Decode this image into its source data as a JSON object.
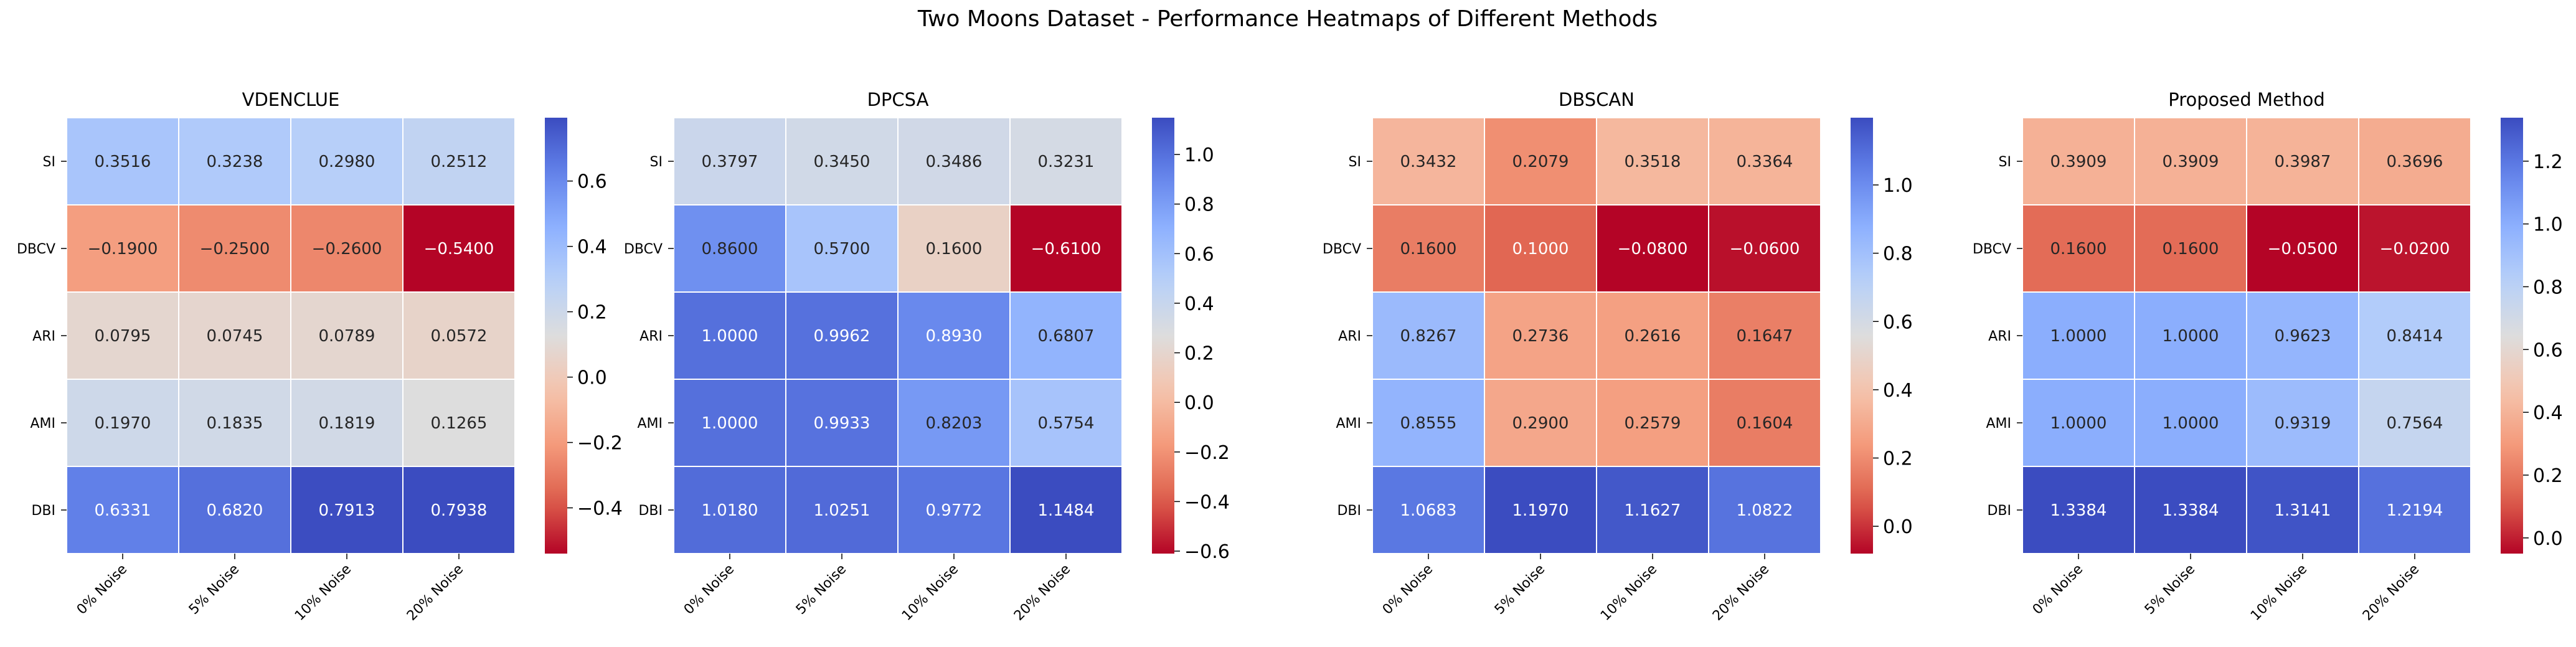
{
  "suptitle": "Two Moons Dataset - Performance Heatmaps of Different Methods",
  "chart_data": [
    {
      "type": "heatmap",
      "title": "VDENCLUE",
      "rows": [
        "SI",
        "DBCV",
        "ARI",
        "AMI",
        "DBI"
      ],
      "columns": [
        "0% Noise",
        "5% Noise",
        "10% Noise",
        "20% Noise"
      ],
      "values": [
        [
          0.3516,
          0.3238,
          0.298,
          0.2512
        ],
        [
          -0.19,
          -0.25,
          -0.26,
          -0.54
        ],
        [
          0.0795,
          0.0745,
          0.0789,
          0.0572
        ],
        [
          0.197,
          0.1835,
          0.1819,
          0.1265
        ],
        [
          0.6331,
          0.682,
          0.7913,
          0.7938
        ]
      ],
      "cell_labels": [
        [
          "0.3516",
          "0.3238",
          "0.2980",
          "0.2512"
        ],
        [
          "−0.1900",
          "−0.2500",
          "−0.2600",
          "−0.5400"
        ],
        [
          "0.0795",
          "0.0745",
          "0.0789",
          "0.0572"
        ],
        [
          "0.1970",
          "0.1835",
          "0.1819",
          "0.1265"
        ],
        [
          "0.6331",
          "0.6820",
          "0.7913",
          "0.7938"
        ]
      ],
      "colormap": "coolwarm_r",
      "vmin": -0.54,
      "vmax": 0.7938,
      "colorbar_ticks": [
        -0.4,
        -0.2,
        0.0,
        0.2,
        0.4,
        0.6
      ],
      "colorbar_tick_labels": [
        "−0.4",
        "−0.2",
        "0.0",
        "0.2",
        "0.4",
        "0.6"
      ]
    },
    {
      "type": "heatmap",
      "title": "DPCSA",
      "rows": [
        "SI",
        "DBCV",
        "ARI",
        "AMI",
        "DBI"
      ],
      "columns": [
        "0% Noise",
        "5% Noise",
        "10% Noise",
        "20% Noise"
      ],
      "values": [
        [
          0.3797,
          0.345,
          0.3486,
          0.3231
        ],
        [
          0.86,
          0.57,
          0.16,
          -0.61
        ],
        [
          1.0,
          0.9962,
          0.893,
          0.6807
        ],
        [
          1.0,
          0.9933,
          0.8203,
          0.5754
        ],
        [
          1.018,
          1.0251,
          0.9772,
          1.1484
        ]
      ],
      "cell_labels": [
        [
          "0.3797",
          "0.3450",
          "0.3486",
          "0.3231"
        ],
        [
          "0.8600",
          "0.5700",
          "0.1600",
          "−0.6100"
        ],
        [
          "1.0000",
          "0.9962",
          "0.8930",
          "0.6807"
        ],
        [
          "1.0000",
          "0.9933",
          "0.8203",
          "0.5754"
        ],
        [
          "1.0180",
          "1.0251",
          "0.9772",
          "1.1484"
        ]
      ],
      "colormap": "coolwarm_r",
      "vmin": -0.61,
      "vmax": 1.1484,
      "colorbar_ticks": [
        -0.6,
        -0.4,
        -0.2,
        0.0,
        0.2,
        0.4,
        0.6,
        0.8,
        1.0
      ],
      "colorbar_tick_labels": [
        "−0.6",
        "−0.4",
        "−0.2",
        "0.0",
        "0.2",
        "0.4",
        "0.6",
        "0.8",
        "1.0"
      ]
    },
    {
      "type": "heatmap",
      "title": "DBSCAN",
      "rows": [
        "SI",
        "DBCV",
        "ARI",
        "AMI",
        "DBI"
      ],
      "columns": [
        "0% Noise",
        "5% Noise",
        "10% Noise",
        "20% Noise"
      ],
      "values": [
        [
          0.3432,
          0.2079,
          0.3518,
          0.3364
        ],
        [
          0.16,
          0.1,
          -0.08,
          -0.06
        ],
        [
          0.8267,
          0.2736,
          0.2616,
          0.1647
        ],
        [
          0.8555,
          0.29,
          0.2579,
          0.1604
        ],
        [
          1.0683,
          1.197,
          1.1627,
          1.0822
        ]
      ],
      "cell_labels": [
        [
          "0.3432",
          "0.2079",
          "0.3518",
          "0.3364"
        ],
        [
          "0.1600",
          "0.1000",
          "−0.0800",
          "−0.0600"
        ],
        [
          "0.8267",
          "0.2736",
          "0.2616",
          "0.1647"
        ],
        [
          "0.8555",
          "0.2900",
          "0.2579",
          "0.1604"
        ],
        [
          "1.0683",
          "1.1970",
          "1.1627",
          "1.0822"
        ]
      ],
      "colormap": "coolwarm_r",
      "vmin": -0.08,
      "vmax": 1.197,
      "colorbar_ticks": [
        0.0,
        0.2,
        0.4,
        0.6,
        0.8,
        1.0
      ],
      "colorbar_tick_labels": [
        "0.0",
        "0.2",
        "0.4",
        "0.6",
        "0.8",
        "1.0"
      ]
    },
    {
      "type": "heatmap",
      "title": "Proposed Method",
      "rows": [
        "SI",
        "DBCV",
        "ARI",
        "AMI",
        "DBI"
      ],
      "columns": [
        "0% Noise",
        "5% Noise",
        "10% Noise",
        "20% Noise"
      ],
      "values": [
        [
          0.3909,
          0.3909,
          0.3987,
          0.3696
        ],
        [
          0.16,
          0.16,
          -0.05,
          -0.02
        ],
        [
          1.0,
          1.0,
          0.9623,
          0.8414
        ],
        [
          1.0,
          1.0,
          0.9319,
          0.7564
        ],
        [
          1.3384,
          1.3384,
          1.3141,
          1.2194
        ]
      ],
      "cell_labels": [
        [
          "0.3909",
          "0.3909",
          "0.3987",
          "0.3696"
        ],
        [
          "0.1600",
          "0.1600",
          "−0.0500",
          "−0.0200"
        ],
        [
          "1.0000",
          "1.0000",
          "0.9623",
          "0.8414"
        ],
        [
          "1.0000",
          "1.0000",
          "0.9319",
          "0.7564"
        ],
        [
          "1.3384",
          "1.3384",
          "1.3141",
          "1.2194"
        ]
      ],
      "colormap": "coolwarm_r",
      "vmin": -0.05,
      "vmax": 1.3384,
      "colorbar_ticks": [
        0.0,
        0.2,
        0.4,
        0.6,
        0.8,
        1.0,
        1.2
      ],
      "colorbar_tick_labels": [
        "0.0",
        "0.2",
        "0.4",
        "0.6",
        "0.8",
        "1.0",
        "1.2"
      ]
    }
  ]
}
